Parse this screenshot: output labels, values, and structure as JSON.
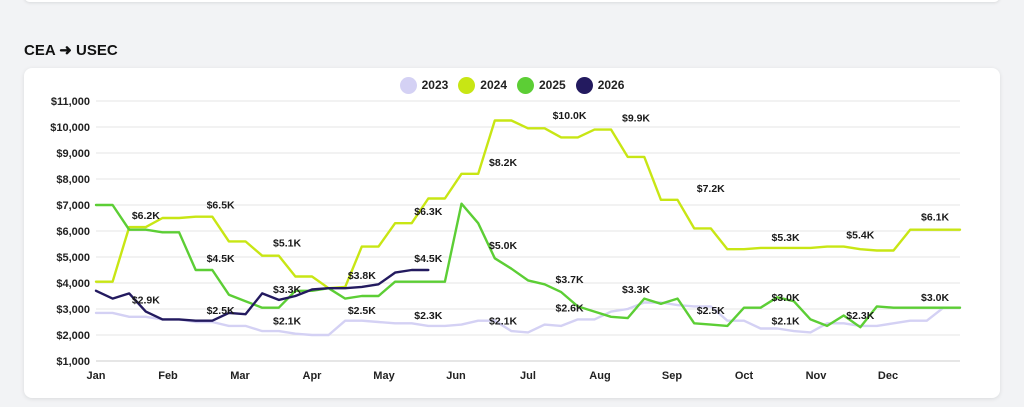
{
  "page": {
    "title": "CEA ➜ USEC"
  },
  "chart_data": {
    "type": "line",
    "title": "",
    "xlabel": "",
    "ylabel": "",
    "ylim": [
      1000,
      11000
    ],
    "y_ticks": [
      1000,
      2000,
      3000,
      4000,
      5000,
      6000,
      7000,
      8000,
      9000,
      10000,
      11000
    ],
    "y_tick_labels": [
      "$1,000",
      "$2,000",
      "$3,000",
      "$4,000",
      "$5,000",
      "$6,000",
      "$7,000",
      "$8,000",
      "$9,000",
      "$10,000",
      "$11,000"
    ],
    "x_tick_labels": [
      "Jan",
      "Feb",
      "Mar",
      "Apr",
      "May",
      "Jun",
      "Jul",
      "Aug",
      "Sep",
      "Oct",
      "Nov",
      "Dec"
    ],
    "x_range_weeks": [
      0,
      52
    ],
    "grid": true,
    "legend": "top-center",
    "series": [
      {
        "name": "2023",
        "color": "#d4d1f4",
        "x": [
          0,
          1,
          2,
          3,
          4,
          5,
          6,
          7,
          8,
          9,
          10,
          11,
          12,
          13,
          14,
          15,
          16,
          17,
          18,
          19,
          20,
          21,
          22,
          23,
          24,
          25,
          26,
          27,
          28,
          29,
          30,
          31,
          32,
          33,
          34,
          35,
          36,
          37,
          38,
          39,
          40,
          41,
          42,
          43,
          44,
          45,
          46,
          47,
          48,
          49,
          50,
          51,
          52
        ],
        "values": [
          2850,
          2850,
          2700,
          2700,
          2600,
          2600,
          2500,
          2500,
          2350,
          2350,
          2150,
          2150,
          2050,
          2000,
          2000,
          2550,
          2550,
          2500,
          2450,
          2450,
          2350,
          2350,
          2400,
          2550,
          2550,
          2150,
          2100,
          2400,
          2350,
          2600,
          2600,
          2900,
          3000,
          3250,
          3250,
          3150,
          3100,
          3100,
          2550,
          2550,
          2250,
          2250,
          2150,
          2100,
          2450,
          2450,
          2350,
          2350,
          2450,
          2550,
          2550,
          3050,
          3050
        ]
      },
      {
        "name": "2024",
        "color": "#c8e614",
        "x": [
          0,
          1,
          2,
          3,
          4,
          5,
          6,
          7,
          8,
          9,
          10,
          11,
          12,
          13,
          14,
          15,
          16,
          17,
          18,
          19,
          20,
          21,
          22,
          23,
          24,
          25,
          26,
          27,
          28,
          29,
          30,
          31,
          32,
          33,
          34,
          35,
          36,
          37,
          38,
          39,
          40,
          41,
          42,
          43,
          44,
          45,
          46,
          47,
          48,
          49,
          50,
          51,
          52
        ],
        "values": [
          4050,
          4050,
          6150,
          6150,
          6500,
          6500,
          6550,
          6550,
          5600,
          5600,
          5050,
          5050,
          4250,
          4250,
          3800,
          3850,
          5400,
          5400,
          6300,
          6300,
          7250,
          7250,
          8200,
          8200,
          10250,
          10250,
          9950,
          9950,
          9600,
          9600,
          9900,
          9900,
          8850,
          8850,
          7200,
          7200,
          6100,
          6100,
          5300,
          5300,
          5350,
          5350,
          5350,
          5350,
          5400,
          5400,
          5300,
          5250,
          5250,
          6050,
          6050,
          6050,
          6050
        ]
      },
      {
        "name": "2025",
        "color": "#5cce35",
        "x": [
          0,
          1,
          2,
          3,
          4,
          5,
          6,
          7,
          8,
          9,
          10,
          11,
          12,
          13,
          14,
          15,
          16,
          17,
          18,
          19,
          20,
          21,
          22,
          23,
          24,
          25,
          26,
          27,
          28,
          29,
          30,
          31,
          32,
          33,
          34,
          35,
          36,
          37,
          38,
          39,
          40,
          41,
          42,
          43,
          44,
          45,
          46,
          47,
          48,
          49,
          50,
          51,
          52
        ],
        "values": [
          7000,
          7000,
          6050,
          6050,
          5950,
          5950,
          4500,
          4500,
          3550,
          3300,
          3050,
          3050,
          3700,
          3700,
          3800,
          3400,
          3500,
          3500,
          4050,
          4050,
          4050,
          4050,
          7050,
          6300,
          4950,
          4550,
          4100,
          3950,
          3650,
          3100,
          2900,
          2700,
          2650,
          3400,
          3200,
          3400,
          2450,
          2400,
          2350,
          3050,
          3050,
          3450,
          3300,
          2600,
          2350,
          2750,
          2300,
          3100,
          3050,
          3050,
          3050,
          3050,
          3050
        ]
      },
      {
        "name": "2026",
        "color": "#231a5f",
        "x": [
          0,
          1,
          2,
          3,
          4,
          5,
          6,
          7,
          8,
          9,
          10,
          11,
          12,
          13,
          14,
          15,
          16,
          17,
          18,
          19,
          20
        ],
        "values": [
          3700,
          3400,
          3600,
          2900,
          2600,
          2600,
          2550,
          2550,
          2850,
          2800,
          3600,
          3350,
          3500,
          3750,
          3800,
          3800,
          3850,
          3950,
          4400,
          4500,
          4500
        ]
      }
    ],
    "data_labels": [
      {
        "text": "$6.2K",
        "x": 3,
        "y": 6150
      },
      {
        "text": "$6.5K",
        "x": 7.5,
        "y": 6550
      },
      {
        "text": "$5.1K",
        "x": 11.5,
        "y": 5100
      },
      {
        "text": "$3.8K",
        "x": 16,
        "y": 3850
      },
      {
        "text": "$6.3K",
        "x": 20,
        "y": 6300
      },
      {
        "text": "$8.2K",
        "x": 24.5,
        "y": 8200
      },
      {
        "text": "$10.0K",
        "x": 28.5,
        "y": 10000
      },
      {
        "text": "$9.9K",
        "x": 32.5,
        "y": 9900
      },
      {
        "text": "$7.2K",
        "x": 37,
        "y": 7200
      },
      {
        "text": "$5.3K",
        "x": 41.5,
        "y": 5300
      },
      {
        "text": "$5.4K",
        "x": 46,
        "y": 5400
      },
      {
        "text": "$6.1K",
        "x": 50.5,
        "y": 6100
      },
      {
        "text": "$4.5K",
        "x": 7.5,
        "y": 4500
      },
      {
        "text": "$2.5K",
        "x": 16,
        "y": 2500
      },
      {
        "text": "$5.0K",
        "x": 24.5,
        "y": 5000
      },
      {
        "text": "$3.7K",
        "x": 28.5,
        "y": 3700
      },
      {
        "text": "$2.5K",
        "x": 37,
        "y": 2500
      },
      {
        "text": "$3.0K",
        "x": 41.5,
        "y": 3000
      },
      {
        "text": "$2.3K",
        "x": 46,
        "y": 2300
      },
      {
        "text": "$3.0K",
        "x": 50.5,
        "y": 3000
      },
      {
        "text": "$2.9K",
        "x": 3,
        "y": 2900
      },
      {
        "text": "$2.5K",
        "x": 7.5,
        "y": 2500
      },
      {
        "text": "$3.3K",
        "x": 11.5,
        "y": 3300
      },
      {
        "text": "$4.5K",
        "x": 20,
        "y": 4500
      },
      {
        "text": "$2.1K",
        "x": 11.5,
        "y": 2100
      },
      {
        "text": "$2.3K",
        "x": 20,
        "y": 2300
      },
      {
        "text": "$2.1K",
        "x": 24.5,
        "y": 2100
      },
      {
        "text": "$2.6K",
        "x": 28.5,
        "y": 2600
      },
      {
        "text": "$3.3K",
        "x": 32.5,
        "y": 3300
      },
      {
        "text": "$2.1K",
        "x": 41.5,
        "y": 2100
      }
    ]
  }
}
